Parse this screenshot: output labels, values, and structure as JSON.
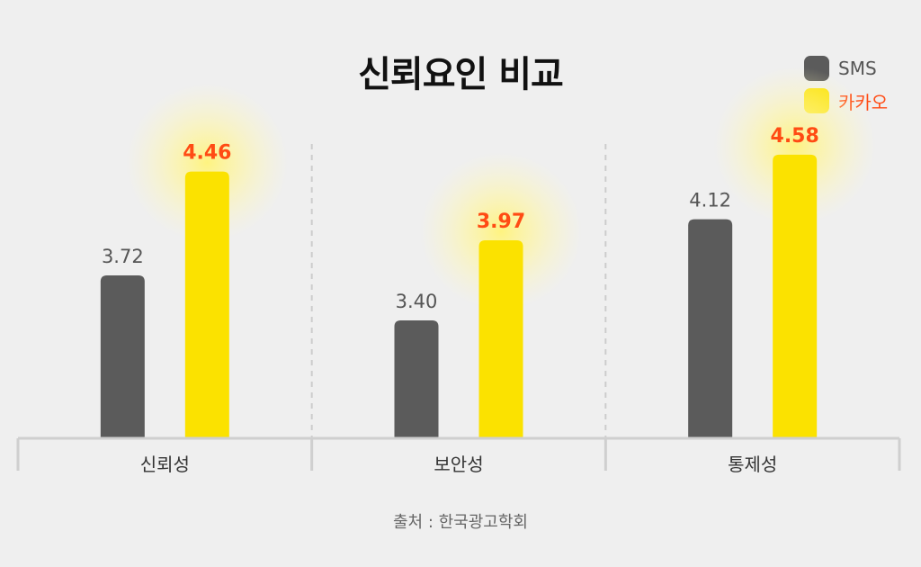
{
  "chart_data": {
    "type": "bar",
    "title": "신뢰요인 비교",
    "categories": [
      "신뢰성",
      "보안성",
      "통제성"
    ],
    "series": [
      {
        "name": "SMS",
        "values": [
          3.72,
          3.4,
          4.12
        ]
      },
      {
        "name": "카카오",
        "values": [
          4.46,
          3.97,
          4.58
        ]
      }
    ],
    "value_labels": [
      [
        "3.72",
        "3.40",
        "4.12"
      ],
      [
        "4.46",
        "3.97",
        "4.58"
      ]
    ],
    "xlabel": "",
    "ylabel": "",
    "ylim": [
      0,
      5
    ],
    "grid": false,
    "legend_position": "top-right"
  },
  "colors": {
    "sms_bar": "#5b5b5b",
    "kakao_bar": "#fbe200",
    "kakao_label": "#ff4b14",
    "sms_label": "#555555",
    "glow": "#fff37a",
    "axis": "#cfcfcf",
    "divider": "#cccccc"
  },
  "source": "출처 : 한국광고학회"
}
